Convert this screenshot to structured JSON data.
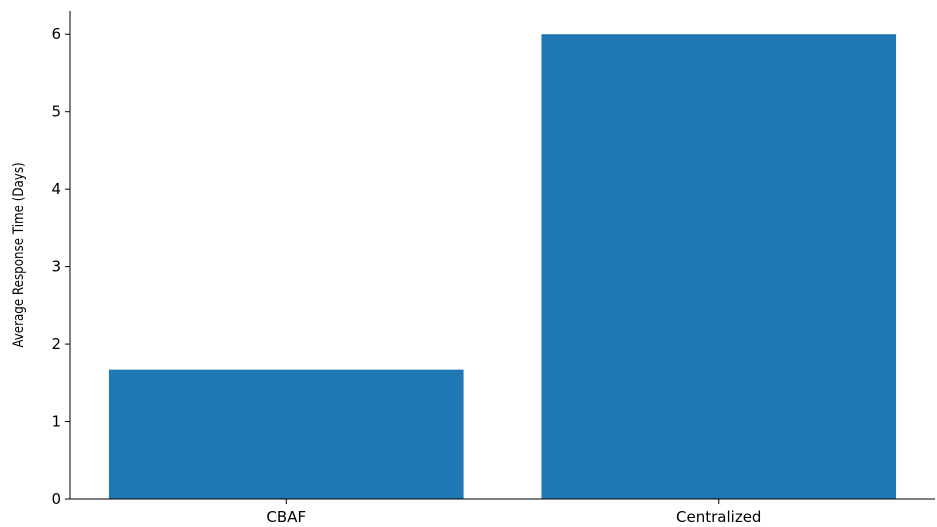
{
  "chart_data": {
    "type": "bar",
    "title": "",
    "xlabel": "",
    "ylabel": "Average Response Time (Days)",
    "categories": [
      "CBAF",
      "Centralized"
    ],
    "values": [
      1.67,
      6.0
    ],
    "ylim": [
      0,
      6.3
    ],
    "yticks": [
      0,
      1,
      2,
      3,
      4,
      5,
      6
    ],
    "bar_color": "#1f77b4",
    "grid": false,
    "legend": "none"
  }
}
